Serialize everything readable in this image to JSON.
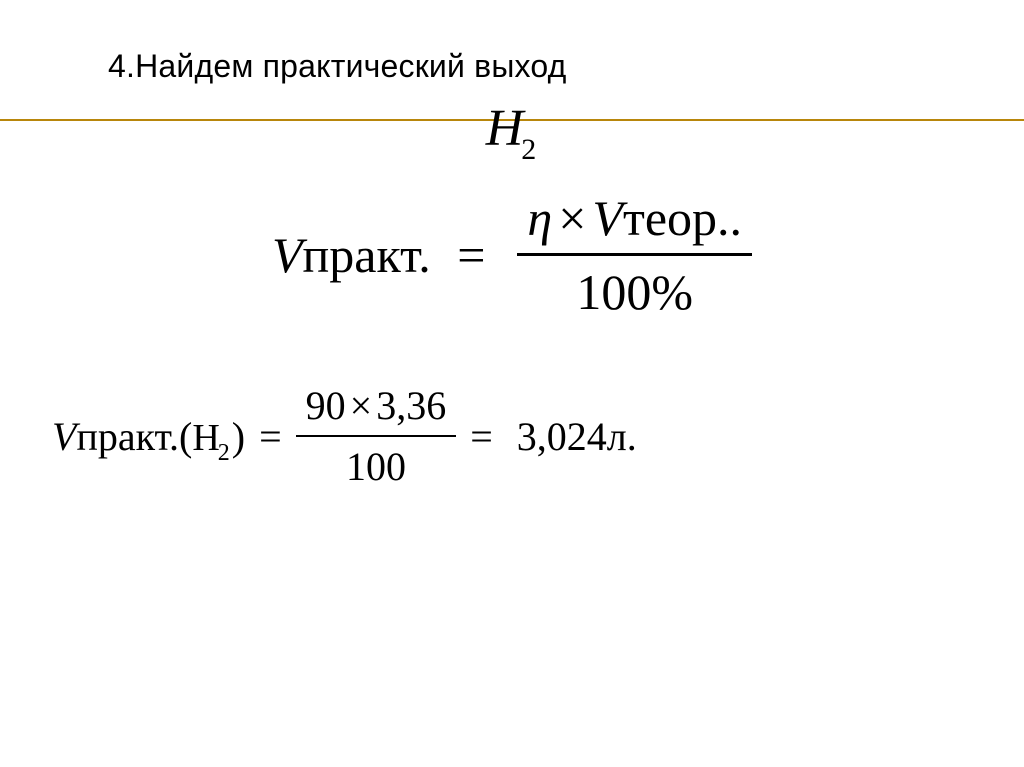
{
  "title": "4.Найдем практический выход",
  "substance": {
    "symbol": "H",
    "subscript": "2"
  },
  "formula": {
    "lhs_prefix": "V",
    "lhs_word": "практ.",
    "equals": "=",
    "numerator": {
      "eta": "η",
      "mult": "×",
      "V": "V",
      "word": "теор.."
    },
    "denominator": "100%"
  },
  "calculation": {
    "lhs_prefix": "V",
    "lhs_word": "практ.",
    "paren_open": "(",
    "H": "H",
    "sub": "2",
    "paren_close": ")",
    "equals": "=",
    "num_a": "90",
    "mult": "×",
    "num_b": "3,36",
    "den": "100",
    "equals2": "=",
    "result": "3,024л."
  },
  "style": {
    "rule_color": "#b8860b",
    "text_color": "#000000",
    "background_color": "#ffffff",
    "title_fontsize": 32,
    "h2_fontsize": 52,
    "formula_fontsize": 50,
    "calc_fontsize": 40
  }
}
